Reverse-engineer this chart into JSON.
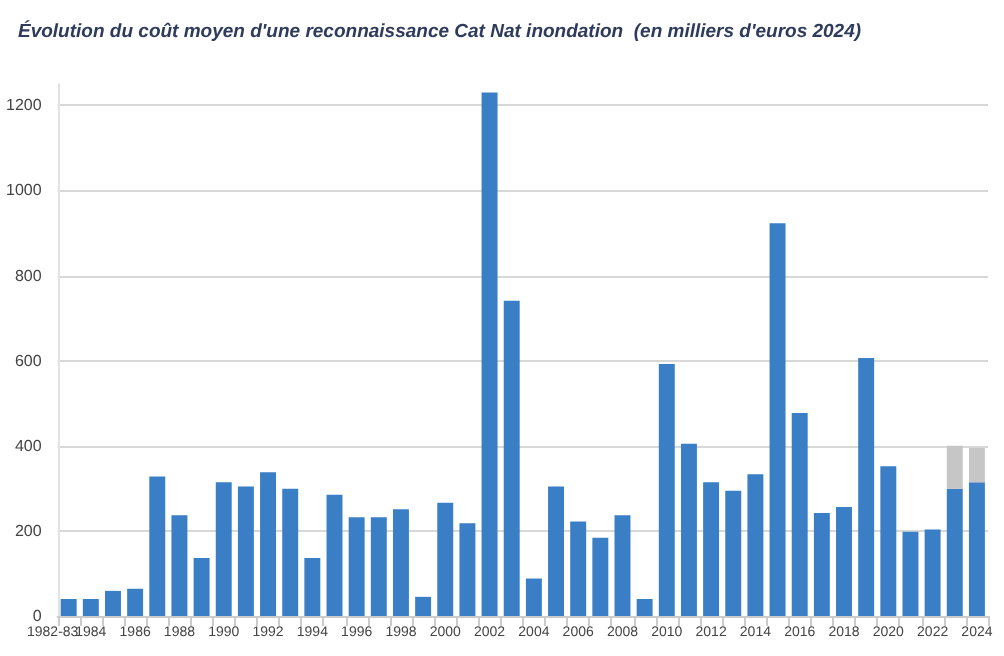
{
  "chart_data": {
    "type": "bar",
    "title": "Évolution du coût moyen d'une reconnaissance Cat Nat inondation  (en milliers d'euros 2024)",
    "categories": [
      "1982-83",
      "1984",
      null,
      "1986",
      null,
      "1988",
      null,
      "1990",
      null,
      "1992",
      null,
      "1994",
      null,
      "1996",
      null,
      "1998",
      null,
      "2000",
      null,
      "2002",
      null,
      "2004",
      null,
      "2006",
      null,
      "2008",
      null,
      "2010",
      null,
      "2012",
      null,
      "2014",
      null,
      "2016",
      null,
      "2018",
      null,
      "2020",
      null,
      "2022",
      null,
      "2024"
    ],
    "stacked": true,
    "series": [
      {
        "color": "#3a7fc6",
        "values": [
          40,
          40,
          59,
          64,
          328,
          237,
          136,
          314,
          304,
          338,
          299,
          136,
          285,
          232,
          232,
          251,
          45,
          266,
          218,
          1230,
          741,
          88,
          304,
          222,
          184,
          237,
          40,
          592,
          405,
          314,
          294,
          333,
          923,
          477,
          242,
          256,
          606,
          352,
          198,
          203,
          299,
          314
        ]
      },
      {
        "color": "#c6c6c6",
        "values": [
          null,
          null,
          null,
          null,
          null,
          null,
          null,
          null,
          null,
          null,
          null,
          null,
          null,
          null,
          null,
          null,
          null,
          null,
          null,
          null,
          null,
          null,
          null,
          null,
          null,
          null,
          null,
          null,
          null,
          null,
          null,
          null,
          null,
          null,
          null,
          null,
          null,
          null,
          null,
          null,
          101,
          81
        ]
      }
    ],
    "ylim": [
      0,
      1250
    ],
    "yticks": [
      0,
      200,
      400,
      600,
      800,
      1000,
      1200
    ],
    "grid": "y"
  }
}
